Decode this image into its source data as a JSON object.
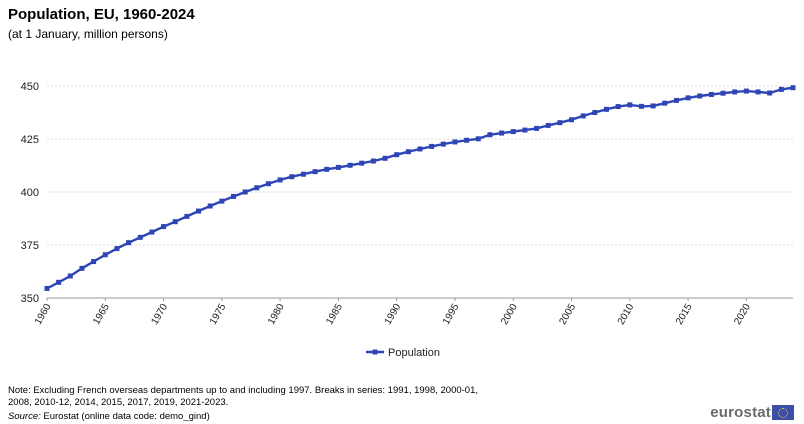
{
  "header": {
    "title": "Population, EU, 1960-2024",
    "subtitle": "(at 1 January, million persons)"
  },
  "chart_data": {
    "type": "line",
    "title": "Population, EU, 1960-2024",
    "subtitle": "(at 1 January, million persons)",
    "x": [
      1960,
      1961,
      1962,
      1963,
      1964,
      1965,
      1966,
      1967,
      1968,
      1969,
      1970,
      1971,
      1972,
      1973,
      1974,
      1975,
      1976,
      1977,
      1978,
      1979,
      1980,
      1981,
      1982,
      1983,
      1984,
      1985,
      1986,
      1987,
      1988,
      1989,
      1990,
      1991,
      1992,
      1993,
      1994,
      1995,
      1996,
      1997,
      1998,
      1999,
      2000,
      2001,
      2002,
      2003,
      2004,
      2005,
      2006,
      2007,
      2008,
      2009,
      2010,
      2011,
      2012,
      2013,
      2014,
      2015,
      2016,
      2017,
      2018,
      2019,
      2020,
      2021,
      2022,
      2023,
      2024
    ],
    "series": [
      {
        "name": "Population",
        "color": "#2e46b5",
        "values": [
          354.5,
          357.4,
          360.4,
          364.0,
          367.2,
          370.4,
          373.3,
          376.1,
          378.6,
          381.1,
          383.7,
          386.0,
          388.5,
          391.0,
          393.4,
          395.7,
          397.9,
          400.0,
          402.0,
          403.9,
          405.7,
          407.2,
          408.4,
          409.6,
          410.7,
          411.6,
          412.6,
          413.6,
          414.6,
          415.9,
          417.6,
          419.0,
          420.3,
          421.5,
          422.6,
          423.6,
          424.4,
          425.1,
          427.0,
          427.8,
          428.5,
          429.2,
          430.0,
          431.4,
          432.7,
          434.1,
          435.9,
          437.5,
          439.0,
          440.3,
          441.1,
          440.4,
          440.6,
          441.9,
          443.2,
          444.4,
          445.3,
          446.0,
          446.6,
          447.2,
          447.6,
          447.2,
          446.7,
          448.4,
          449.2
        ]
      }
    ],
    "ylim": [
      350,
      450
    ],
    "yticks": [
      350,
      375,
      400,
      425,
      450
    ],
    "xticks": [
      1960,
      1965,
      1970,
      1975,
      1980,
      1985,
      1990,
      1995,
      2000,
      2005,
      2010,
      2015,
      2020
    ],
    "grid": true,
    "legend_position": "bottom"
  },
  "footer": {
    "note_line1": "Note: Excluding French overseas departments up to and including 1997. Breaks in series: 1991, 1998, 2000-01,",
    "note_line2": "2008, 2010-12, 2014, 2015, 2017, 2019, 2021-2023.",
    "source_label": "Source:",
    "source_text": " Eurostat (online data code: demo_gind)",
    "logo_text": "eurostat"
  }
}
